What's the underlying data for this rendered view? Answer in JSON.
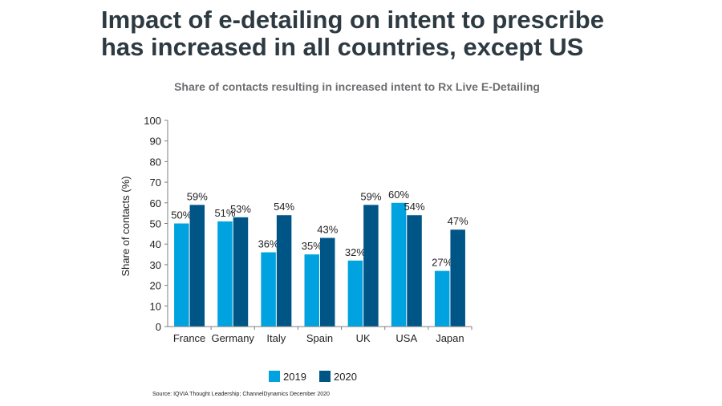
{
  "slide": {
    "title_line1": "Impact of e-detailing on intent to prescribe",
    "title_line2": "has increased in all countries, except US",
    "source": "Source: IQVIA Thought Leadership; ChannelDynamics December 2020"
  },
  "chart_data": {
    "type": "bar",
    "title": "Share of contacts resulting in increased intent to Rx Live E-Detailing",
    "xlabel": "",
    "ylabel": "Share of contacts (%)",
    "ylim": [
      0,
      100
    ],
    "yticks": [
      0,
      10,
      20,
      30,
      40,
      50,
      60,
      70,
      80,
      90,
      100
    ],
    "categories": [
      "France",
      "Germany",
      "Italy",
      "Spain",
      "UK",
      "USA",
      "Japan"
    ],
    "series": [
      {
        "name": "2019",
        "color": "#00a3e0",
        "values": [
          50,
          51,
          36,
          35,
          32,
          60,
          27
        ],
        "labels": [
          "50%",
          "51%",
          "36%",
          "35%",
          "32%",
          "60%",
          "27%"
        ]
      },
      {
        "name": "2020",
        "color": "#005587",
        "values": [
          59,
          53,
          54,
          43,
          59,
          54,
          47
        ],
        "labels": [
          "59%",
          "53%",
          "54%",
          "43%",
          "59%",
          "54%",
          "47%"
        ]
      }
    ],
    "grid": false,
    "legend": "bottom"
  }
}
